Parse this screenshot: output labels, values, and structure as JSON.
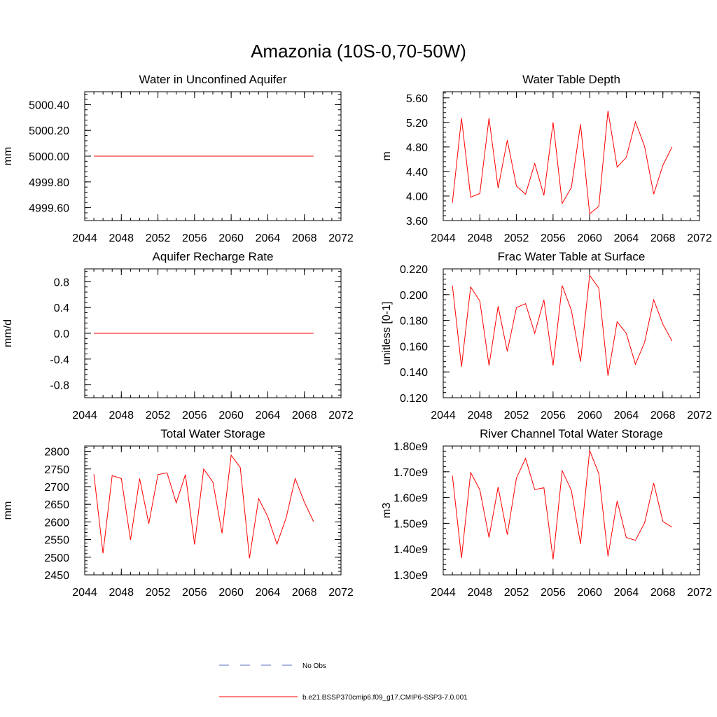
{
  "figure": {
    "title": "Amazonia (10S-0,70-50W)"
  },
  "legend": {
    "entries": [
      {
        "label": "No Obs",
        "color": "#5c6fc0",
        "style": "dashed"
      },
      {
        "label": "b.e21.BSSP370cmip6.f09_g17.CMIP6-SSP3-7.0.001",
        "color": "#ff0000",
        "style": "solid"
      }
    ]
  },
  "chart_data": [
    {
      "type": "line",
      "title": "Water in Unconfined Aquifer",
      "ylabel": "mm",
      "xlim": [
        2044,
        2072
      ],
      "ylim": [
        4999.5,
        5000.5
      ],
      "x_ticks": [
        "2044",
        "2048",
        "2052",
        "2056",
        "2060",
        "2064",
        "2068",
        "2072"
      ],
      "y_ticks": [
        {
          "value": 4999.6,
          "label": "4999.60"
        },
        {
          "value": 4999.8,
          "label": "4999.80"
        },
        {
          "value": 5000.0,
          "label": "5000.00"
        },
        {
          "value": 5000.2,
          "label": "5000.20"
        },
        {
          "value": 5000.4,
          "label": "5000.40"
        }
      ],
      "x": [
        2045,
        2046,
        2047,
        2048,
        2049,
        2050,
        2051,
        2052,
        2053,
        2054,
        2055,
        2056,
        2057,
        2058,
        2059,
        2060,
        2061,
        2062,
        2063,
        2064,
        2065,
        2066,
        2067,
        2068,
        2069
      ],
      "series": [
        {
          "color": "#ff0000",
          "values": [
            5000,
            5000,
            5000,
            5000,
            5000,
            5000,
            5000,
            5000,
            5000,
            5000,
            5000,
            5000,
            5000,
            5000,
            5000,
            5000,
            5000,
            5000,
            5000,
            5000,
            5000,
            5000,
            5000,
            5000,
            5000
          ]
        }
      ]
    },
    {
      "type": "line",
      "title": "Water Table Depth",
      "ylabel": "m",
      "xlim": [
        2044,
        2072
      ],
      "ylim": [
        3.6,
        5.7
      ],
      "x_ticks": [
        "2044",
        "2048",
        "2052",
        "2056",
        "2060",
        "2064",
        "2068",
        "2072"
      ],
      "y_ticks": [
        {
          "value": 3.6,
          "label": "3.60"
        },
        {
          "value": 4.0,
          "label": "4.00"
        },
        {
          "value": 4.4,
          "label": "4.40"
        },
        {
          "value": 4.8,
          "label": "4.80"
        },
        {
          "value": 5.2,
          "label": "5.20"
        },
        {
          "value": 5.6,
          "label": "5.60"
        }
      ],
      "x": [
        2045,
        2046,
        2047,
        2048,
        2049,
        2050,
        2051,
        2052,
        2053,
        2054,
        2055,
        2056,
        2057,
        2058,
        2059,
        2060,
        2061,
        2062,
        2063,
        2064,
        2065,
        2066,
        2067,
        2068,
        2069
      ],
      "series": [
        {
          "color": "#ff0000",
          "values": [
            3.89,
            5.27,
            3.98,
            4.04,
            5.27,
            4.13,
            4.91,
            4.16,
            4.03,
            4.53,
            4.01,
            5.2,
            3.88,
            4.14,
            5.17,
            3.71,
            3.83,
            5.39,
            4.47,
            4.63,
            5.21,
            4.81,
            4.03,
            4.5,
            4.8
          ]
        }
      ]
    },
    {
      "type": "line",
      "title": "Aquifer Recharge Rate",
      "ylabel": "mm/d",
      "xlim": [
        2044,
        2072
      ],
      "ylim": [
        -1.0,
        1.0
      ],
      "x_ticks": [
        "2044",
        "2048",
        "2052",
        "2056",
        "2060",
        "2064",
        "2068",
        "2072"
      ],
      "y_ticks": [
        {
          "value": -0.8,
          "label": "-0.8"
        },
        {
          "value": -0.4,
          "label": "-0.4"
        },
        {
          "value": 0.0,
          "label": "0.0"
        },
        {
          "value": 0.4,
          "label": "0.4"
        },
        {
          "value": 0.8,
          "label": "0.8"
        }
      ],
      "x": [
        2045,
        2046,
        2047,
        2048,
        2049,
        2050,
        2051,
        2052,
        2053,
        2054,
        2055,
        2056,
        2057,
        2058,
        2059,
        2060,
        2061,
        2062,
        2063,
        2064,
        2065,
        2066,
        2067,
        2068,
        2069
      ],
      "series": [
        {
          "color": "#ff0000",
          "values": [
            0,
            0,
            0,
            0,
            0,
            0,
            0,
            0,
            0,
            0,
            0,
            0,
            0,
            0,
            0,
            0,
            0,
            0,
            0,
            0,
            0,
            0,
            0,
            0,
            0
          ]
        }
      ]
    },
    {
      "type": "line",
      "title": "Frac Water Table at Surface",
      "ylabel": "unitless [0-1]",
      "xlim": [
        2044,
        2072
      ],
      "ylim": [
        0.12,
        0.22
      ],
      "x_ticks": [
        "2044",
        "2048",
        "2052",
        "2056",
        "2060",
        "2064",
        "2068",
        "2072"
      ],
      "y_ticks": [
        {
          "value": 0.12,
          "label": "0.120"
        },
        {
          "value": 0.14,
          "label": "0.140"
        },
        {
          "value": 0.16,
          "label": "0.160"
        },
        {
          "value": 0.18,
          "label": "0.180"
        },
        {
          "value": 0.2,
          "label": "0.200"
        },
        {
          "value": 0.22,
          "label": "0.220"
        }
      ],
      "x": [
        2045,
        2046,
        2047,
        2048,
        2049,
        2050,
        2051,
        2052,
        2053,
        2054,
        2055,
        2056,
        2057,
        2058,
        2059,
        2060,
        2061,
        2062,
        2063,
        2064,
        2065,
        2066,
        2067,
        2068,
        2069
      ],
      "series": [
        {
          "color": "#ff0000",
          "values": [
            0.207,
            0.144,
            0.206,
            0.195,
            0.145,
            0.191,
            0.156,
            0.19,
            0.193,
            0.17,
            0.196,
            0.145,
            0.207,
            0.188,
            0.148,
            0.215,
            0.205,
            0.137,
            0.179,
            0.17,
            0.146,
            0.163,
            0.196,
            0.177,
            0.164
          ]
        }
      ]
    },
    {
      "type": "line",
      "title": "Total Water Storage",
      "ylabel": "mm",
      "xlim": [
        2044,
        2072
      ],
      "ylim": [
        2450,
        2815
      ],
      "x_ticks": [
        "2044",
        "2048",
        "2052",
        "2056",
        "2060",
        "2064",
        "2068",
        "2072"
      ],
      "y_ticks": [
        {
          "value": 2450,
          "label": "2450"
        },
        {
          "value": 2500,
          "label": "2500"
        },
        {
          "value": 2550,
          "label": "2550"
        },
        {
          "value": 2600,
          "label": "2600"
        },
        {
          "value": 2650,
          "label": "2650"
        },
        {
          "value": 2700,
          "label": "2700"
        },
        {
          "value": 2750,
          "label": "2750"
        },
        {
          "value": 2800,
          "label": "2800"
        }
      ],
      "x": [
        2045,
        2046,
        2047,
        2048,
        2049,
        2050,
        2051,
        2052,
        2053,
        2054,
        2055,
        2056,
        2057,
        2058,
        2059,
        2060,
        2061,
        2062,
        2063,
        2064,
        2065,
        2066,
        2067,
        2068,
        2069
      ],
      "series": [
        {
          "color": "#ff0000",
          "values": [
            2735,
            2511,
            2731,
            2723,
            2549,
            2723,
            2595,
            2734,
            2739,
            2654,
            2734,
            2536,
            2750,
            2713,
            2568,
            2789,
            2754,
            2497,
            2666,
            2615,
            2537,
            2611,
            2723,
            2656,
            2601
          ]
        }
      ]
    },
    {
      "type": "line",
      "title": "River Channel Total Water Storage",
      "ylabel": "m3",
      "xlim": [
        2044,
        2072
      ],
      "ylim": [
        1300000000.0,
        1800000000.0
      ],
      "x_ticks": [
        "2044",
        "2048",
        "2052",
        "2056",
        "2060",
        "2064",
        "2068",
        "2072"
      ],
      "y_ticks": [
        {
          "value": 1300000000.0,
          "label": "1.30e9"
        },
        {
          "value": 1400000000.0,
          "label": "1.40e9"
        },
        {
          "value": 1500000000.0,
          "label": "1.50e9"
        },
        {
          "value": 1600000000.0,
          "label": "1.60e9"
        },
        {
          "value": 1700000000.0,
          "label": "1.70e9"
        },
        {
          "value": 1800000000.0,
          "label": "1.80e9"
        }
      ],
      "x": [
        2045,
        2046,
        2047,
        2048,
        2049,
        2050,
        2051,
        2052,
        2053,
        2054,
        2055,
        2056,
        2057,
        2058,
        2059,
        2060,
        2061,
        2062,
        2063,
        2064,
        2065,
        2066,
        2067,
        2068,
        2069
      ],
      "series": [
        {
          "color": "#ff0000",
          "values": [
            1685000000.0,
            1365000000.0,
            1697000000.0,
            1630000000.0,
            1445000000.0,
            1641000000.0,
            1456000000.0,
            1676000000.0,
            1752000000.0,
            1631000000.0,
            1638000000.0,
            1360000000.0,
            1704000000.0,
            1628000000.0,
            1420000000.0,
            1783000000.0,
            1693000000.0,
            1372000000.0,
            1587000000.0,
            1445000000.0,
            1434000000.0,
            1502000000.0,
            1656000000.0,
            1507000000.0,
            1485000000.0
          ]
        }
      ]
    }
  ]
}
